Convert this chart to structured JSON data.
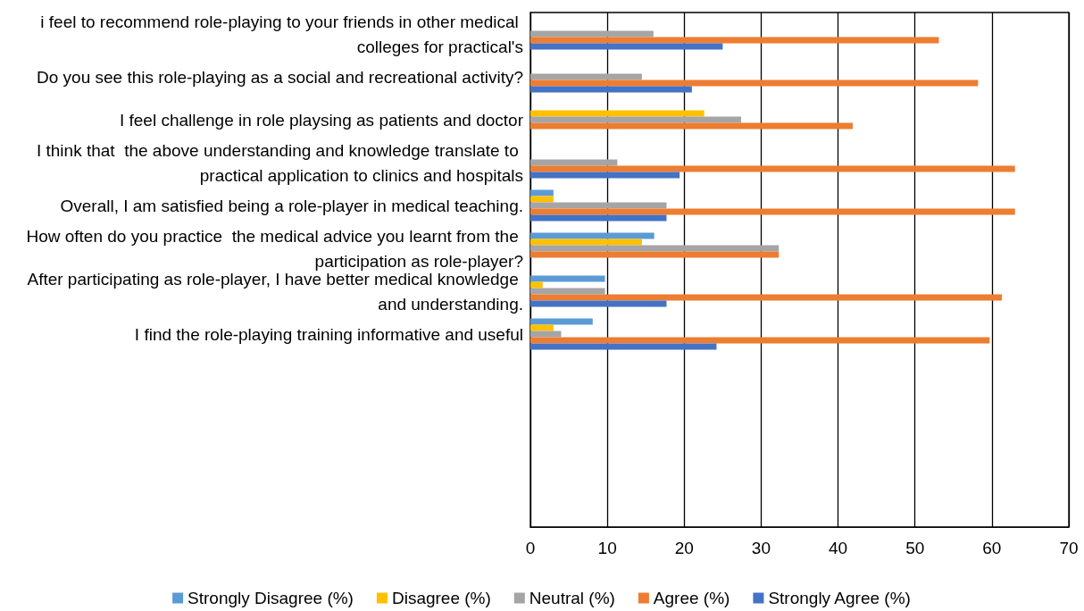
{
  "chart_data": {
    "type": "bar",
    "orientation": "horizontal",
    "categories": [
      "i feel to recommend role-playing to your friends in other medical colleges for practical's",
      "Do you see this role-playing as a social and recreational activity?",
      "I feel challenge in role playsing as patients and doctor",
      "I think that  the above understanding and knowledge translate to practical application to clinics and hospitals",
      "Overall, I am satisfied being a role-player in medical teaching.",
      "How often do you practice  the medical advice you learnt from the participation as role-player?",
      "After participating as role-player, I have better medical knowledge and understanding.",
      "I find the role-playing training informative and useful",
      null,
      null,
      null,
      null
    ],
    "series": [
      {
        "name": "Strongly Disagree (%)",
        "color": "#5b9bd5",
        "values": [
          null,
          null,
          null,
          null,
          3.0,
          16.1,
          9.7,
          8.1,
          null,
          null,
          null,
          null
        ]
      },
      {
        "name": "Disagree (%)",
        "color": "#ffc000",
        "values": [
          null,
          null,
          22.6,
          null,
          3.0,
          14.5,
          1.6,
          3.0,
          null,
          null,
          null,
          null
        ]
      },
      {
        "name": "Neutral (%)",
        "color": "#a5a5a5",
        "values": [
          16.0,
          14.5,
          27.4,
          11.3,
          17.7,
          32.3,
          9.7,
          4.0,
          null,
          null,
          null,
          null
        ]
      },
      {
        "name": "Agree (%)",
        "color": "#ed7d31",
        "values": [
          53.1,
          58.2,
          41.9,
          63.0,
          63.0,
          32.3,
          61.3,
          59.7,
          null,
          null,
          null,
          null
        ]
      },
      {
        "name": "Strongly Agree (%)",
        "color": "#4472c4",
        "values": [
          25.0,
          21.0,
          null,
          19.4,
          17.7,
          null,
          17.7,
          24.2,
          null,
          null,
          null,
          null
        ]
      }
    ],
    "xlim": [
      0,
      70
    ],
    "xticks": [
      0,
      10,
      20,
      30,
      40,
      50,
      60,
      70
    ],
    "grid": "x",
    "legend": "bottom"
  }
}
